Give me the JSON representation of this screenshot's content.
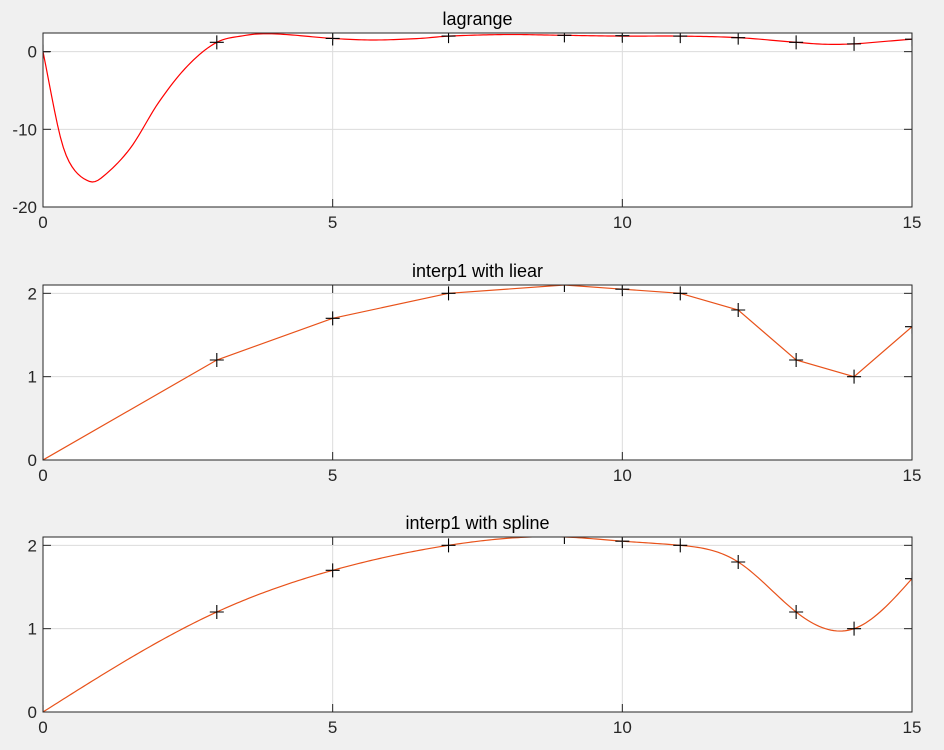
{
  "chart_data": [
    {
      "type": "line",
      "title": "lagrange",
      "xlabel": "",
      "ylabel": "",
      "xlim": [
        0,
        15
      ],
      "ylim": [
        -20,
        2.4
      ],
      "xticks": [
        0,
        5,
        10,
        15
      ],
      "yticks": [
        -20,
        -10,
        0
      ],
      "grid": true,
      "markers": {
        "x": [
          0,
          3,
          5,
          7,
          9,
          10,
          11,
          12,
          13,
          14,
          15
        ],
        "y": [
          0,
          1.2,
          1.7,
          2.0,
          2.1,
          2.05,
          2.0,
          1.8,
          1.2,
          1.0,
          1.6
        ],
        "style": "+",
        "color": "#000000"
      },
      "series": [
        {
          "color": "#ff0000",
          "method": "lagrange",
          "x": [
            0,
            0.3,
            0.5,
            0.8,
            1.0,
            1.5,
            2.0,
            2.5,
            3.0,
            3.5,
            3.8,
            4.2,
            5.0,
            5.7,
            6.5,
            7.0,
            8.0,
            9.0,
            10.0,
            11.0,
            12.0,
            13.0,
            13.5,
            14.0,
            14.5,
            15.0
          ],
          "y": [
            0,
            -11.0,
            -14.8,
            -16.7,
            -16.3,
            -12.5,
            -6.5,
            -1.8,
            1.2,
            2.1,
            2.3,
            2.2,
            1.7,
            1.5,
            1.7,
            2.0,
            2.2,
            2.1,
            2.0,
            2.0,
            1.8,
            1.2,
            0.95,
            1.0,
            1.3,
            1.6
          ]
        }
      ]
    },
    {
      "type": "line",
      "title": "interp1 with liear",
      "xlabel": "",
      "ylabel": "",
      "xlim": [
        0,
        15
      ],
      "ylim": [
        0,
        2.1
      ],
      "xticks": [
        0,
        5,
        10,
        15
      ],
      "yticks": [
        0,
        1,
        2
      ],
      "grid": true,
      "markers": {
        "x": [
          0,
          3,
          5,
          7,
          9,
          10,
          11,
          12,
          13,
          14,
          15
        ],
        "y": [
          0,
          1.2,
          1.7,
          2.0,
          2.1,
          2.05,
          2.0,
          1.8,
          1.2,
          1.0,
          1.6
        ],
        "style": "+",
        "color": "#000000"
      },
      "series": [
        {
          "color": "#e8521a",
          "method": "linear",
          "x": [
            0,
            3,
            5,
            7,
            9,
            10,
            11,
            12,
            13,
            14,
            15
          ],
          "y": [
            0,
            1.2,
            1.7,
            2.0,
            2.1,
            2.05,
            2.0,
            1.8,
            1.2,
            1.0,
            1.6
          ]
        }
      ]
    },
    {
      "type": "line",
      "title": "interp1 with spline",
      "xlabel": "",
      "ylabel": "",
      "xlim": [
        0,
        15
      ],
      "ylim": [
        0,
        2.1
      ],
      "xticks": [
        0,
        5,
        10,
        15
      ],
      "yticks": [
        0,
        1,
        2
      ],
      "grid": true,
      "markers": {
        "x": [
          0,
          3,
          5,
          7,
          9,
          10,
          11,
          12,
          13,
          14,
          15
        ],
        "y": [
          0,
          1.2,
          1.7,
          2.0,
          2.1,
          2.05,
          2.0,
          1.8,
          1.2,
          1.0,
          1.6
        ],
        "style": "+",
        "color": "#000000"
      },
      "series": [
        {
          "color": "#e8521a",
          "method": "spline",
          "x": [
            0,
            3,
            5,
            7,
            9,
            10,
            11,
            12,
            13,
            14,
            15
          ],
          "y": [
            0,
            1.2,
            1.7,
            2.0,
            2.1,
            2.05,
            2.0,
            1.8,
            1.2,
            1.0,
            1.6
          ]
        }
      ]
    }
  ]
}
